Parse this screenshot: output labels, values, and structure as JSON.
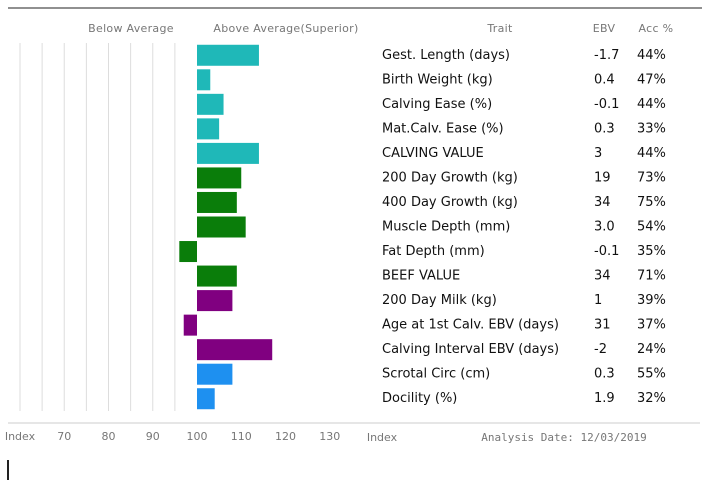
{
  "chart_data": {
    "type": "bar",
    "orientation": "horizontal",
    "left_header": "Below Average",
    "right_header": "Above Average(Superior)",
    "trait_header": "Trait",
    "ebv_header": "EBV",
    "acc_header": "Acc %",
    "axis_label_left": "Index",
    "axis_label_right": "Index",
    "analysis_date": "Analysis Date: 12/03/2019",
    "categories": [
      "Gest. Length (days)",
      "Birth Weight (kg)",
      "Calving Ease (%)",
      "Mat.Calv. Ease (%)",
      "CALVING VALUE",
      "200 Day Growth (kg)",
      "400 Day Growth (kg)",
      "Muscle Depth (mm)",
      "Fat Depth (mm)",
      "BEEF VALUE",
      "200 Day Milk (kg)",
      "Age at 1st Calv. EBV (days)",
      "Calving Interval EBV (days)",
      "Scrotal Circ (cm)",
      "Docility (%)"
    ],
    "values": [
      114,
      103,
      106,
      105,
      114,
      110,
      109,
      111,
      96,
      109,
      108,
      97,
      117,
      108,
      104
    ],
    "colors": [
      "#1fb8b8",
      "#1fb8b8",
      "#1fb8b8",
      "#1fb8b8",
      "#1fb8b8",
      "#0a7d0a",
      "#0a7d0a",
      "#0a7d0a",
      "#0a7d0a",
      "#0a7d0a",
      "#800080",
      "#800080",
      "#800080",
      "#1e90f0",
      "#1e90f0"
    ],
    "ebv": [
      "-1.7",
      "0.4",
      "-0.1",
      "0.3",
      "3",
      "19",
      "34",
      "3.0",
      "-0.1",
      "34",
      "1",
      "31",
      "-2",
      "0.3",
      "1.9"
    ],
    "acc": [
      "44%",
      "47%",
      "44%",
      "33%",
      "44%",
      "73%",
      "75%",
      "54%",
      "35%",
      "71%",
      "39%",
      "37%",
      "24%",
      "55%",
      "32%"
    ],
    "base": 100,
    "xlim": [
      60,
      140
    ],
    "xticks": [
      70,
      80,
      90,
      100,
      110,
      120,
      130
    ],
    "grid_x": [
      60,
      65,
      70,
      75,
      80,
      85,
      90,
      95
    ]
  }
}
